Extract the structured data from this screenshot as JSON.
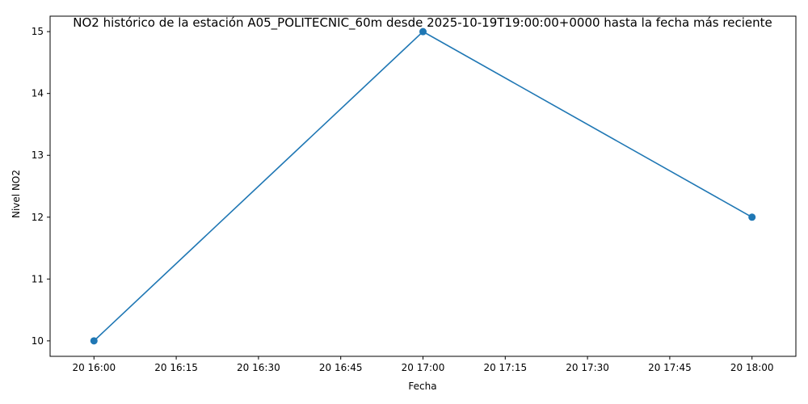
{
  "chart_data": {
    "type": "line",
    "title": "NO2 histórico de la estación A05_POLITECNIC_60m desde 2025-10-19T19:00:00+0000 hasta la fecha más reciente",
    "xlabel": "Fecha",
    "ylabel": "Nivel NO2",
    "x_ticks": [
      "20 16:00",
      "20 16:15",
      "20 16:30",
      "20 16:45",
      "20 17:00",
      "20 17:15",
      "20 17:30",
      "20 17:45",
      "20 18:00"
    ],
    "y_ticks": [
      "10",
      "11",
      "12",
      "13",
      "14",
      "15"
    ],
    "xlim": [
      "20 15:52",
      "20 18:08"
    ],
    "ylim": [
      9.75,
      15.25
    ],
    "grid": false,
    "series": [
      {
        "x": [
          "20 16:00",
          "20 17:00",
          "20 18:00"
        ],
        "values": [
          10,
          15,
          12
        ],
        "color": "#1f77b4",
        "marker": "circle"
      }
    ]
  }
}
